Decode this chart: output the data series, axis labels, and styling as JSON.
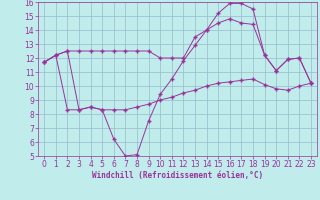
{
  "background_color": "#c0ecec",
  "grid_color": "#99bbcc",
  "line_color": "#993399",
  "xlabel": "Windchill (Refroidissement éolien,°C)",
  "xlabel_color": "#993399",
  "tick_color": "#993399",
  "xlim": [
    -0.5,
    23.5
  ],
  "ylim": [
    5,
    16
  ],
  "xticks": [
    0,
    1,
    2,
    3,
    4,
    5,
    6,
    7,
    8,
    9,
    10,
    11,
    12,
    13,
    14,
    15,
    16,
    17,
    18,
    19,
    20,
    21,
    22,
    23
  ],
  "yticks": [
    5,
    6,
    7,
    8,
    9,
    10,
    11,
    12,
    13,
    14,
    15,
    16
  ],
  "line1_x": [
    0,
    1,
    2,
    3,
    4,
    5,
    6,
    7,
    8,
    9,
    10,
    11,
    12,
    13,
    14,
    15,
    16,
    17,
    18,
    19,
    20,
    21,
    22,
    23
  ],
  "line1_y": [
    11.7,
    12.2,
    12.5,
    12.5,
    12.5,
    12.5,
    12.5,
    12.5,
    12.5,
    12.5,
    12.0,
    12.0,
    12.0,
    13.5,
    14.0,
    14.5,
    14.8,
    14.5,
    14.4,
    12.2,
    11.1,
    11.9,
    12.0,
    10.2
  ],
  "line2_x": [
    0,
    1,
    2,
    3,
    4,
    5,
    6,
    7,
    8,
    9,
    10,
    11,
    12,
    13,
    14,
    15,
    16,
    17,
    18,
    19,
    20,
    21,
    22,
    23
  ],
  "line2_y": [
    11.7,
    12.2,
    12.5,
    8.3,
    8.5,
    8.3,
    6.2,
    5.0,
    5.1,
    7.5,
    9.4,
    10.5,
    11.8,
    12.9,
    14.0,
    15.2,
    15.9,
    15.9,
    15.5,
    12.2,
    11.1,
    11.9,
    12.0,
    10.2
  ],
  "line3_x": [
    0,
    1,
    2,
    3,
    4,
    5,
    6,
    7,
    8,
    9,
    10,
    11,
    12,
    13,
    14,
    15,
    16,
    17,
    18,
    19,
    20,
    21,
    22,
    23
  ],
  "line3_y": [
    11.7,
    12.2,
    8.3,
    8.3,
    8.5,
    8.3,
    8.3,
    8.3,
    8.5,
    8.7,
    9.0,
    9.2,
    9.5,
    9.7,
    10.0,
    10.2,
    10.3,
    10.4,
    10.5,
    10.1,
    9.8,
    9.7,
    10.0,
    10.2
  ]
}
